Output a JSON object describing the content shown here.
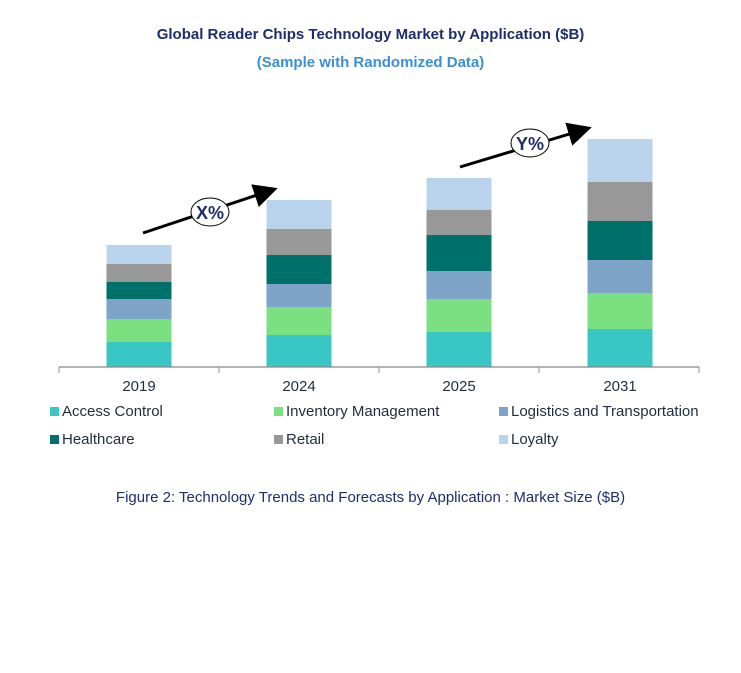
{
  "chart_data": {
    "type": "bar",
    "stacked": true,
    "title": "Global Reader Chips Technology Market by Application ($B)",
    "subtitle": "(Sample with Randomized Data)",
    "categories": [
      "2019",
      "2024",
      "2025",
      "2031"
    ],
    "series": [
      {
        "name": "Access Control",
        "color": "#38c7c5",
        "values": [
          25,
          32,
          35,
          38
        ]
      },
      {
        "name": "Inventory Management",
        "color": "#7be07f",
        "values": [
          23,
          28,
          33,
          36
        ]
      },
      {
        "name": "Logistics and Transportation",
        "color": "#7ea3c8",
        "values": [
          20,
          23,
          28,
          33
        ]
      },
      {
        "name": "Healthcare",
        "color": "#00716a",
        "values": [
          17,
          29,
          36,
          39
        ]
      },
      {
        "name": "Retail",
        "color": "#989898",
        "values": [
          18,
          26,
          25,
          39
        ]
      },
      {
        "name": "Loyalty",
        "color": "#b9d3ec",
        "values": [
          19,
          29,
          32,
          43
        ]
      }
    ],
    "annotations": [
      "X%",
      "Y%"
    ],
    "legend_position": "bottom",
    "grid": false,
    "y_axis_shown": false,
    "caption": "Figure 2: Technology  Trends  and Forecasts by Application : Market Size ($B)"
  }
}
